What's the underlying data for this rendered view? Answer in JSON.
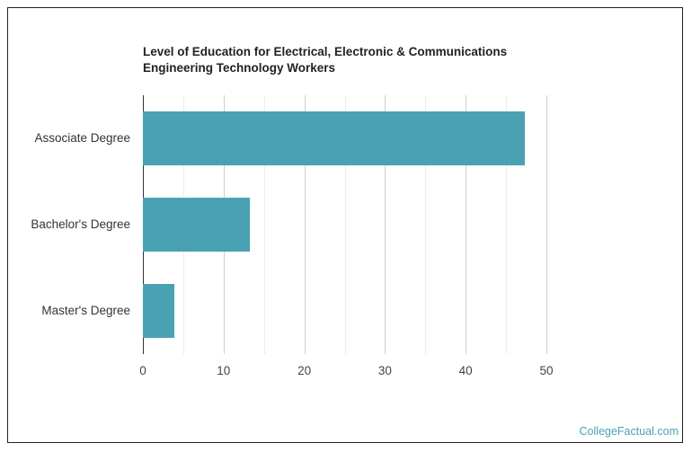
{
  "chart_data": {
    "type": "bar",
    "orientation": "horizontal",
    "title": "Level of Education for Electrical, Electronic & Communications Engineering Technology Workers",
    "categories": [
      "Associate Degree",
      "Bachelor's Degree",
      "Master's Degree"
    ],
    "values": [
      47.3,
      13.3,
      3.9
    ],
    "xlabel": "",
    "ylabel": "",
    "xlim": [
      0,
      50
    ],
    "xticks": [
      "0",
      "10",
      "20",
      "30",
      "40",
      "50"
    ],
    "grid": true,
    "legend": null,
    "bar_color": "#4aa1b3"
  },
  "footer": {
    "source_link": "CollegeFactual.com",
    "link_color": "#4aa0b4"
  }
}
